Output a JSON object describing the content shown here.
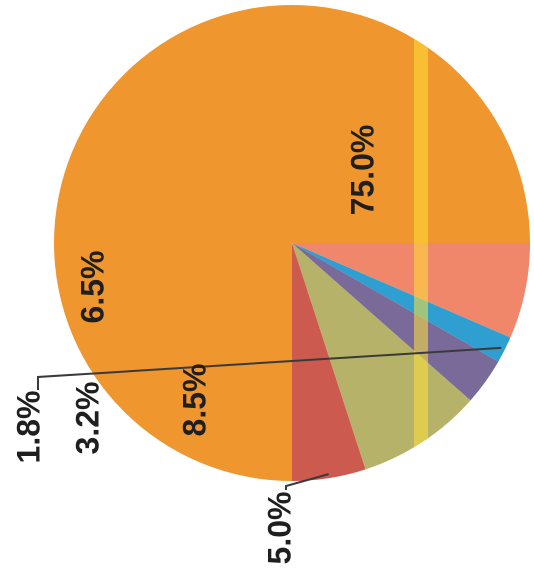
{
  "chart_data": {
    "type": "pie",
    "title": "",
    "slices": [
      {
        "label": "75.0%",
        "value": 75.0,
        "color": "#f0962e"
      },
      {
        "label": "5.0%",
        "value": 5.0,
        "color": "#cc5a4e"
      },
      {
        "label": "8.5%",
        "value": 8.5,
        "color": "#b6b26a"
      },
      {
        "label": "3.2%",
        "value": 3.2,
        "color": "#7a6a9a"
      },
      {
        "label": "1.8%",
        "value": 1.8,
        "color": "#2e9fd0"
      },
      {
        "label": "6.5%",
        "value": 6.5,
        "color": "#f0866a"
      }
    ],
    "start_angle": "3 o'clock, counter-clockwise",
    "label_orientation": "rotated 90° counter-clockwise",
    "legend": "none",
    "highlight_color": "#ffe23a"
  }
}
